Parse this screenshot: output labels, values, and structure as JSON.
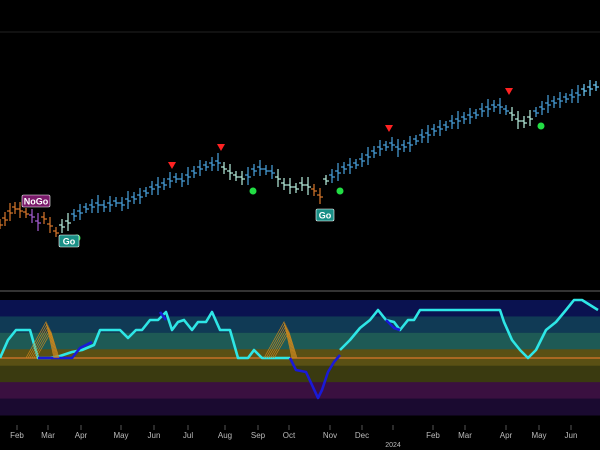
{
  "colors": {
    "background": "#000000",
    "separator": "#666666",
    "go_blue": "#4aa3df",
    "go_bright": "#6fd0ff",
    "weak_go": "#b8f0e0",
    "nogo_orange": "#d9772b",
    "nogo_purple": "#a85fd6",
    "osc_cyan": "#2ee6e6",
    "osc_blue": "#1a1ad6",
    "zero_line": "#d9772b",
    "marker_red": "#ff2222",
    "marker_green": "#22dd44",
    "badge_go": "#1a8f86",
    "badge_nogo": "#7a1a6a",
    "cluster_orange": "#c8861e"
  },
  "labels": {
    "badges": [
      {
        "name": "nogo-badge",
        "text": "NoGo"
      },
      {
        "name": "go-badge-1",
        "text": "Go"
      },
      {
        "name": "go-badge-2",
        "text": "Go"
      }
    ]
  },
  "chart_data": [
    {
      "type": "ohlc",
      "panel": "price",
      "note_scale": "unlabeled",
      "series": [
        {
          "name": "",
          "values": [
            {
              "x": 0,
              "c": 224,
              "r": "nogo_orange"
            },
            {
              "x": 5,
              "c": 219,
              "r": "nogo_orange"
            },
            {
              "x": 10,
              "c": 212,
              "r": "nogo_orange"
            },
            {
              "x": 15,
              "c": 208,
              "r": "nogo_orange"
            },
            {
              "x": 20,
              "c": 210,
              "r": "nogo_orange"
            },
            {
              "x": 26,
              "c": 213,
              "r": "nogo_orange"
            },
            {
              "x": 32,
              "c": 216,
              "r": "nogo_purple"
            },
            {
              "x": 38,
              "c": 222,
              "r": "nogo_purple"
            },
            {
              "x": 44,
              "c": 218,
              "r": "nogo_orange"
            },
            {
              "x": 50,
              "c": 225,
              "r": "nogo_orange"
            },
            {
              "x": 56,
              "c": 232,
              "r": "nogo_orange"
            },
            {
              "x": 62,
              "c": 226,
              "r": "weak_go"
            },
            {
              "x": 68,
              "c": 222,
              "r": "weak_go"
            },
            {
              "x": 74,
              "c": 215,
              "r": "go_blue"
            },
            {
              "x": 80,
              "c": 212,
              "r": "go_blue"
            },
            {
              "x": 86,
              "c": 208,
              "r": "go_blue"
            },
            {
              "x": 92,
              "c": 206,
              "r": "go_blue"
            },
            {
              "x": 98,
              "c": 204,
              "r": "go_blue"
            },
            {
              "x": 104,
              "c": 206,
              "r": "go_blue"
            },
            {
              "x": 110,
              "c": 204,
              "r": "go_blue"
            },
            {
              "x": 116,
              "c": 202,
              "r": "go_blue"
            },
            {
              "x": 122,
              "c": 204,
              "r": "go_blue"
            },
            {
              "x": 128,
              "c": 200,
              "r": "go_blue"
            },
            {
              "x": 134,
              "c": 198,
              "r": "go_blue"
            },
            {
              "x": 140,
              "c": 196,
              "r": "go_blue"
            },
            {
              "x": 146,
              "c": 192,
              "r": "go_blue"
            },
            {
              "x": 152,
              "c": 188,
              "r": "go_blue"
            },
            {
              "x": 158,
              "c": 186,
              "r": "go_blue"
            },
            {
              "x": 164,
              "c": 184,
              "r": "go_blue"
            },
            {
              "x": 170,
              "c": 180,
              "r": "go_blue"
            },
            {
              "x": 176,
              "c": 178,
              "r": "go_blue"
            },
            {
              "x": 182,
              "c": 180,
              "r": "go_blue"
            },
            {
              "x": 188,
              "c": 176,
              "r": "go_blue"
            },
            {
              "x": 194,
              "c": 172,
              "r": "go_blue"
            },
            {
              "x": 200,
              "c": 168,
              "r": "go_blue"
            },
            {
              "x": 206,
              "c": 166,
              "r": "go_blue"
            },
            {
              "x": 212,
              "c": 164,
              "r": "go_blue"
            },
            {
              "x": 218,
              "c": 162,
              "r": "go_blue"
            },
            {
              "x": 224,
              "c": 168,
              "r": "weak_go"
            },
            {
              "x": 230,
              "c": 172,
              "r": "weak_go"
            },
            {
              "x": 236,
              "c": 176,
              "r": "weak_go"
            },
            {
              "x": 242,
              "c": 178,
              "r": "weak_go"
            },
            {
              "x": 248,
              "c": 176,
              "r": "go_blue"
            },
            {
              "x": 254,
              "c": 170,
              "r": "go_blue"
            },
            {
              "x": 260,
              "c": 168,
              "r": "go_blue"
            },
            {
              "x": 266,
              "c": 170,
              "r": "go_blue"
            },
            {
              "x": 272,
              "c": 172,
              "r": "go_blue"
            },
            {
              "x": 278,
              "c": 178,
              "r": "weak_go"
            },
            {
              "x": 284,
              "c": 184,
              "r": "weak_go"
            },
            {
              "x": 290,
              "c": 186,
              "r": "weak_go"
            },
            {
              "x": 296,
              "c": 188,
              "r": "weak_go"
            },
            {
              "x": 302,
              "c": 184,
              "r": "weak_go"
            },
            {
              "x": 308,
              "c": 186,
              "r": "weak_go"
            },
            {
              "x": 314,
              "c": 190,
              "r": "nogo_orange"
            },
            {
              "x": 320,
              "c": 196,
              "r": "nogo_orange"
            },
            {
              "x": 326,
              "c": 180,
              "r": "weak_go"
            },
            {
              "x": 332,
              "c": 176,
              "r": "go_blue"
            },
            {
              "x": 338,
              "c": 172,
              "r": "go_blue"
            },
            {
              "x": 344,
              "c": 168,
              "r": "go_blue"
            },
            {
              "x": 350,
              "c": 166,
              "r": "go_blue"
            },
            {
              "x": 356,
              "c": 164,
              "r": "go_blue"
            },
            {
              "x": 362,
              "c": 160,
              "r": "go_blue"
            },
            {
              "x": 368,
              "c": 156,
              "r": "go_blue"
            },
            {
              "x": 374,
              "c": 152,
              "r": "go_blue"
            },
            {
              "x": 380,
              "c": 148,
              "r": "go_blue"
            },
            {
              "x": 386,
              "c": 146,
              "r": "go_blue"
            },
            {
              "x": 392,
              "c": 144,
              "r": "go_blue"
            },
            {
              "x": 398,
              "c": 148,
              "r": "go_blue"
            },
            {
              "x": 404,
              "c": 146,
              "r": "go_blue"
            },
            {
              "x": 410,
              "c": 144,
              "r": "go_blue"
            },
            {
              "x": 416,
              "c": 140,
              "r": "go_blue"
            },
            {
              "x": 422,
              "c": 136,
              "r": "go_blue"
            },
            {
              "x": 428,
              "c": 134,
              "r": "go_blue"
            },
            {
              "x": 434,
              "c": 130,
              "r": "go_blue"
            },
            {
              "x": 440,
              "c": 128,
              "r": "go_blue"
            },
            {
              "x": 446,
              "c": 126,
              "r": "go_blue"
            },
            {
              "x": 452,
              "c": 122,
              "r": "go_blue"
            },
            {
              "x": 458,
              "c": 120,
              "r": "go_blue"
            },
            {
              "x": 464,
              "c": 118,
              "r": "go_blue"
            },
            {
              "x": 470,
              "c": 116,
              "r": "go_blue"
            },
            {
              "x": 476,
              "c": 114,
              "r": "go_blue"
            },
            {
              "x": 482,
              "c": 110,
              "r": "go_blue"
            },
            {
              "x": 488,
              "c": 108,
              "r": "go_blue"
            },
            {
              "x": 494,
              "c": 106,
              "r": "go_blue"
            },
            {
              "x": 500,
              "c": 106,
              "r": "go_blue"
            },
            {
              "x": 506,
              "c": 110,
              "r": "go_blue"
            },
            {
              "x": 512,
              "c": 114,
              "r": "weak_go"
            },
            {
              "x": 518,
              "c": 120,
              "r": "weak_go"
            },
            {
              "x": 524,
              "c": 122,
              "r": "weak_go"
            },
            {
              "x": 530,
              "c": 118,
              "r": "weak_go"
            },
            {
              "x": 536,
              "c": 112,
              "r": "go_blue"
            },
            {
              "x": 542,
              "c": 108,
              "r": "go_blue"
            },
            {
              "x": 548,
              "c": 104,
              "r": "go_blue"
            },
            {
              "x": 554,
              "c": 102,
              "r": "go_blue"
            },
            {
              "x": 560,
              "c": 100,
              "r": "go_blue"
            },
            {
              "x": 566,
              "c": 98,
              "r": "go_blue"
            },
            {
              "x": 572,
              "c": 96,
              "r": "go_blue"
            },
            {
              "x": 578,
              "c": 94,
              "r": "go_blue"
            },
            {
              "x": 584,
              "c": 90,
              "r": "go_bright"
            },
            {
              "x": 590,
              "c": 88,
              "r": "go_bright"
            },
            {
              "x": 596,
              "c": 86,
              "r": "go_bright"
            }
          ]
        }
      ],
      "markers": {
        "red_triangles": [
          172,
          221,
          389,
          509
        ],
        "green_dots": [
          77,
          253,
          340,
          541
        ]
      }
    },
    {
      "type": "line",
      "panel": "oscillator",
      "zones": [
        "#0a1250",
        "#103a55",
        "#1e5a55",
        "#5a5014",
        "#3a3a10",
        "#3a1040",
        "#1a0a30"
      ],
      "categories": [
        "Feb",
        "Mar",
        "Apr",
        "May",
        "Jun",
        "Jul",
        "Aug",
        "Sep",
        "Oct",
        "Nov",
        "Dec",
        "2024",
        "Feb",
        "Mar",
        "Apr",
        "May",
        "Jun"
      ],
      "series": [
        {
          "name": "",
          "segments": [
            {
              "color": "osc_cyan",
              "points": [
                [
                  0,
                  358
                ],
                [
                  8,
                  340
                ],
                [
                  16,
                  330
                ],
                [
                  30,
                  330
                ],
                [
                  38,
                  358
                ],
                [
                  50,
                  358
                ],
                [
                  60,
                  356
                ],
                [
                  72,
                  352
                ],
                [
                  82,
                  350
                ],
                [
                  94,
                  345
                ],
                [
                  100,
                  330
                ],
                [
                  112,
                  330
                ],
                [
                  120,
                  330
                ],
                [
                  128,
                  338
                ],
                [
                  136,
                  330
                ],
                [
                  142,
                  330
                ],
                [
                  150,
                  320
                ],
                [
                  158,
                  320
                ],
                [
                  166,
                  312
                ],
                [
                  172,
                  330
                ],
                [
                  178,
                  322
                ],
                [
                  184,
                  320
                ],
                [
                  192,
                  330
                ],
                [
                  198,
                  322
                ],
                [
                  206,
                  322
                ],
                [
                  212,
                  312
                ],
                [
                  220,
                  330
                ],
                [
                  230,
                  330
                ],
                [
                  238,
                  358
                ],
                [
                  248,
                  358
                ],
                [
                  254,
                  350
                ],
                [
                  262,
                  358
                ],
                [
                  290,
                  358
                ]
              ]
            },
            {
              "color": "osc_blue",
              "points": [
                [
                  38,
                  358
                ],
                [
                  72,
                  358
                ],
                [
                  80,
                  348
                ],
                [
                  92,
                  342
                ]
              ]
            },
            {
              "color": "osc_blue",
              "points": [
                [
                  160,
                  312
                ],
                [
                  166,
                  320
                ]
              ]
            },
            {
              "color": "osc_blue",
              "points": [
                [
                  290,
                  358
                ],
                [
                  296,
                  370
                ],
                [
                  306,
                  372
                ],
                [
                  312,
                  385
                ],
                [
                  318,
                  398
                ],
                [
                  322,
                  390
                ],
                [
                  328,
                  372
                ],
                [
                  334,
                  362
                ],
                [
                  340,
                  355
                ]
              ]
            },
            {
              "color": "osc_cyan",
              "points": [
                [
                  340,
                  350
                ],
                [
                  350,
                  340
                ],
                [
                  360,
                  328
                ],
                [
                  370,
                  320
                ],
                [
                  378,
                  310
                ],
                [
                  386,
                  320
                ],
                [
                  394,
                  322
                ],
                [
                  400,
                  330
                ],
                [
                  408,
                  320
                ],
                [
                  414,
                  320
                ],
                [
                  420,
                  310
                ],
                [
                  440,
                  310
                ],
                [
                  470,
                  310
                ],
                [
                  500,
                  310
                ],
                [
                  504,
                  322
                ],
                [
                  512,
                  340
                ],
                [
                  520,
                  350
                ],
                [
                  528,
                  358
                ],
                [
                  536,
                  350
                ],
                [
                  546,
                  330
                ],
                [
                  556,
                  322
                ],
                [
                  566,
                  310
                ],
                [
                  574,
                  300
                ],
                [
                  582,
                  300
                ],
                [
                  590,
                  305
                ],
                [
                  598,
                  310
                ]
              ]
            },
            {
              "color": "osc_blue",
              "points": [
                [
                  386,
                  320
                ],
                [
                  394,
                  328
                ],
                [
                  400,
                  330
                ]
              ]
            }
          ]
        }
      ],
      "clusters": [
        40,
        278
      ]
    }
  ]
}
